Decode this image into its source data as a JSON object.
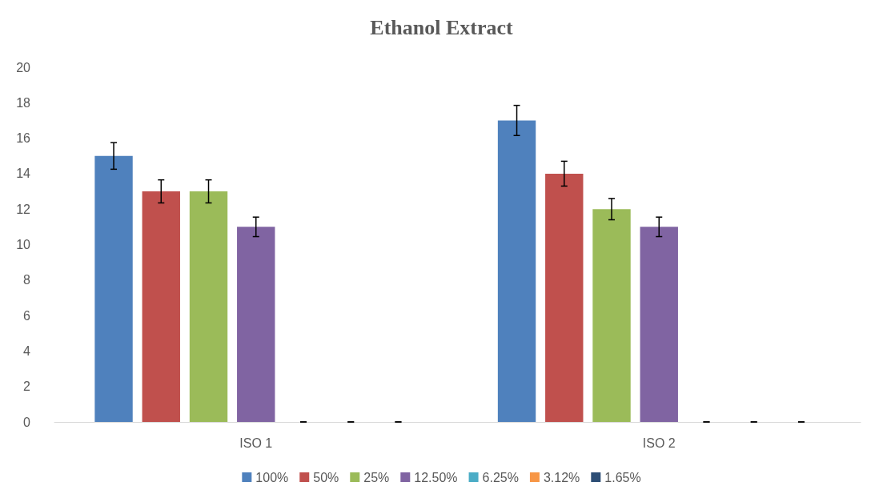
{
  "chart_data": {
    "type": "bar",
    "title": "Ethanol Extract",
    "categories": [
      "ISO 1",
      "ISO 2"
    ],
    "series": [
      {
        "name": "100%",
        "color": "#4f81bd",
        "values": [
          15,
          17
        ],
        "errors": [
          0.75,
          0.85
        ]
      },
      {
        "name": "50%",
        "color": "#c0504d",
        "values": [
          13,
          14
        ],
        "errors": [
          0.65,
          0.7
        ]
      },
      {
        "name": "25%",
        "color": "#9bbb59",
        "values": [
          13,
          12
        ],
        "errors": [
          0.65,
          0.6
        ]
      },
      {
        "name": "12.50%",
        "color": "#8064a2",
        "values": [
          11,
          11
        ],
        "errors": [
          0.55,
          0.55
        ]
      },
      {
        "name": "6.25%",
        "color": "#4bacc6",
        "values": [
          0,
          0
        ],
        "errors": [
          0,
          0
        ]
      },
      {
        "name": "3.12%",
        "color": "#f79646",
        "values": [
          0,
          0
        ],
        "errors": [
          0,
          0
        ]
      },
      {
        "name": "1.65%",
        "color": "#2c4d75",
        "values": [
          0,
          0
        ],
        "errors": [
          0,
          0
        ]
      }
    ],
    "ylim": [
      0,
      20
    ],
    "yticks": [
      0,
      2,
      4,
      6,
      8,
      10,
      12,
      14,
      16,
      18,
      20
    ],
    "grid": false,
    "legend": "bottom"
  }
}
